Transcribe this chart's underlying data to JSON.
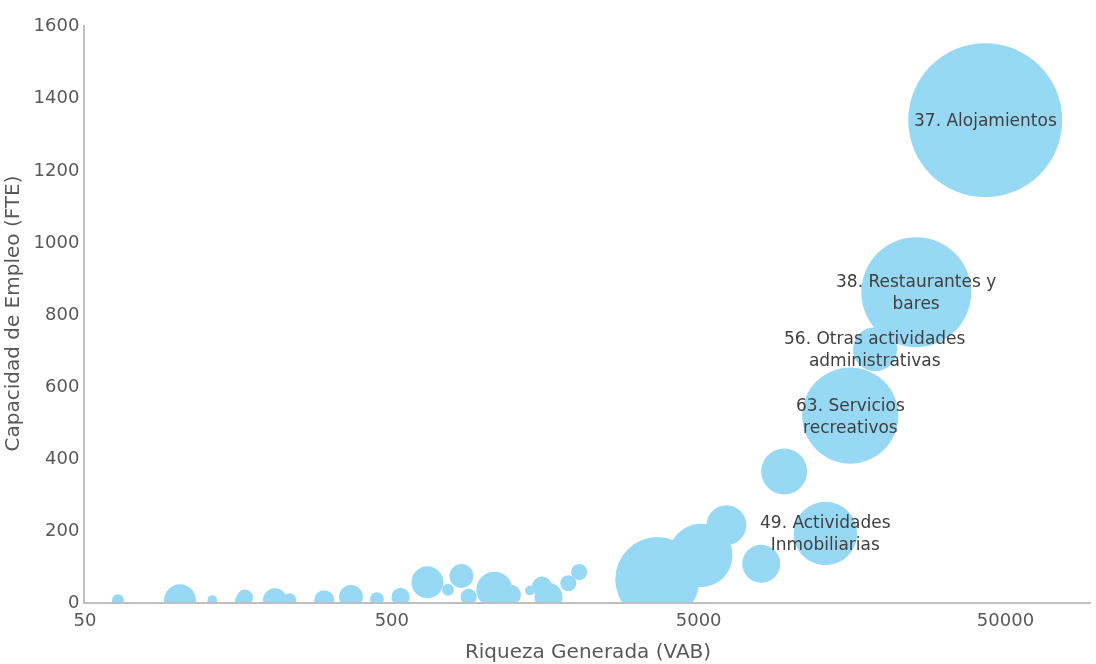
{
  "chart_data": {
    "type": "bubble",
    "xlabel": "Riqueza Generada (VAB)",
    "ylabel": "Capacidad de Empleo (FTE)",
    "log": "x",
    "xlim": [
      50,
      95000
    ],
    "xticks": [
      50,
      500,
      5000,
      50000
    ],
    "ylim": [
      0,
      1600
    ],
    "yticks": [
      0,
      200,
      400,
      600,
      800,
      1000,
      1200,
      1400,
      1600
    ],
    "series": [
      {
        "color": "#97d9f5",
        "x": [
          42950,
          25600,
          18800,
          15600,
          9500,
          12950,
          6160,
          8000,
          3670,
          5080,
          1880,
          64,
          102,
          130,
          160,
          166,
          208,
          232,
          301,
          368,
          447,
          534,
          653,
          762,
          843,
          890,
          1080,
          1222,
          1410,
          1543,
          1620,
          2040
        ],
        "values": [
          1336,
          859,
          701,
          517,
          362,
          190,
          213,
          106,
          63,
          129,
          52,
          5,
          5,
          5,
          5,
          12,
          5,
          5,
          5,
          14,
          8,
          14,
          55,
          34,
          72,
          14,
          34,
          20,
          32,
          43,
          14,
          83
        ],
        "sizes": [
          1,
          0.51,
          0.082,
          0.39,
          0.089,
          0.17,
          0.067,
          0.061,
          0.3,
          0.17,
          0.011,
          0.006,
          0.043,
          0.004,
          0.004,
          0.011,
          0.024,
          0.008,
          0.017,
          0.024,
          0.008,
          0.014,
          0.043,
          0.006,
          0.024,
          0.011,
          0.055,
          0.017,
          0.004,
          0.017,
          0.033,
          0.011
        ]
      }
    ],
    "annotations": [
      {
        "text": "37. Alojamientos",
        "x": 42950,
        "y": 1336
      },
      {
        "text": "38. Restaurantes y\nbares",
        "x": 25600,
        "y": 859
      },
      {
        "text": "56. Otras actividades\nadministrativas",
        "x": 18800,
        "y": 701
      },
      {
        "text": "63. Servicios\nrecreativos",
        "x": 15600,
        "y": 517
      },
      {
        "text": "49. Actividades\nInmobiliarias",
        "x": 12950,
        "y": 190
      }
    ]
  }
}
